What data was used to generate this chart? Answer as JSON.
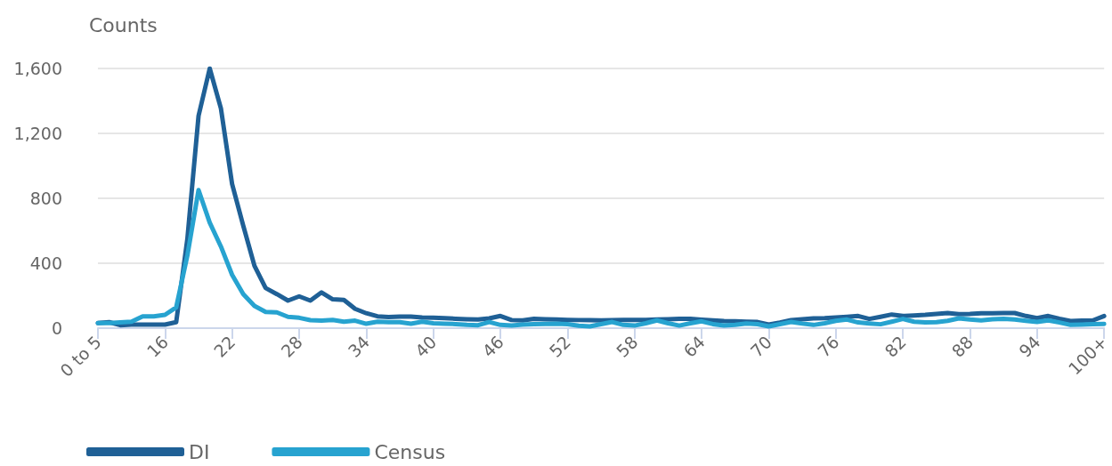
{
  "chart_data": {
    "type": "line",
    "ylabel": "Counts",
    "categories": [
      "0 to 5",
      null,
      null,
      null,
      null,
      null,
      "16",
      null,
      null,
      null,
      null,
      null,
      "22",
      null,
      null,
      null,
      null,
      null,
      "28",
      null,
      null,
      null,
      null,
      null,
      "34",
      null,
      null,
      null,
      null,
      null,
      "40",
      null,
      null,
      null,
      null,
      null,
      "46",
      null,
      null,
      null,
      null,
      null,
      "52",
      null,
      null,
      null,
      null,
      null,
      "58",
      null,
      null,
      null,
      null,
      null,
      "64",
      null,
      null,
      null,
      null,
      null,
      "70",
      null,
      null,
      null,
      null,
      null,
      "76",
      null,
      null,
      null,
      null,
      null,
      "82",
      null,
      null,
      null,
      null,
      null,
      "88",
      null,
      null,
      null,
      null,
      null,
      "94",
      null,
      null,
      null,
      null,
      null,
      "100+"
    ],
    "series": [
      {
        "name": "DI",
        "color": "#1f6096",
        "values": [
          31,
          37,
          18,
          22,
          22,
          22,
          22,
          37,
          550,
          1308,
          1600,
          1354,
          888,
          631,
          384,
          247,
          210,
          170,
          196,
          170,
          220,
          178,
          174,
          119,
          92,
          73,
          68,
          71,
          71,
          66,
          64,
          62,
          58,
          55,
          53,
          60,
          75,
          50,
          48,
          57,
          55,
          53,
          51,
          50,
          49,
          48,
          50,
          51,
          51,
          51,
          53,
          55,
          57,
          57,
          52,
          48,
          44,
          42,
          40,
          38,
          22,
          35,
          50,
          55,
          60,
          62,
          66,
          70,
          75,
          57,
          70,
          84,
          75,
          78,
          82,
          88,
          93,
          86,
          88,
          92,
          92,
          93,
          93,
          75,
          62,
          75,
          58,
          44,
          46,
          48,
          75
        ]
      },
      {
        "name": "Census",
        "color": "#27a3d0",
        "values": [
          31,
          31,
          35,
          40,
          73,
          73,
          82,
          128,
          448,
          851,
          650,
          503,
          329,
          210,
          137,
          100,
          97,
          70,
          64,
          49,
          46,
          51,
          40,
          46,
          27,
          40,
          37,
          37,
          27,
          40,
          30,
          28,
          25,
          20,
          18,
          38,
          20,
          16,
          22,
          24,
          26,
          28,
          25,
          15,
          11,
          25,
          38,
          20,
          16,
          30,
          48,
          30,
          16,
          30,
          42,
          25,
          16,
          20,
          29,
          25,
          11,
          25,
          38,
          28,
          20,
          30,
          45,
          53,
          35,
          29,
          24,
          40,
          57,
          40,
          35,
          37,
          45,
          60,
          53,
          48,
          55,
          57,
          53,
          45,
          38,
          48,
          35,
          20,
          22,
          24,
          26
        ]
      }
    ],
    "ylim": [
      0,
      1600
    ],
    "yticks": [
      0,
      {
        "value": 400,
        "label": "400"
      },
      {
        "value": 800,
        "label": "800"
      },
      {
        "value": 1200,
        "label": "1,200"
      },
      {
        "value": 1600,
        "label": "1,600"
      }
    ],
    "grid": "y",
    "legend": "bottom left",
    "marker": "none",
    "line_style": "solid"
  }
}
